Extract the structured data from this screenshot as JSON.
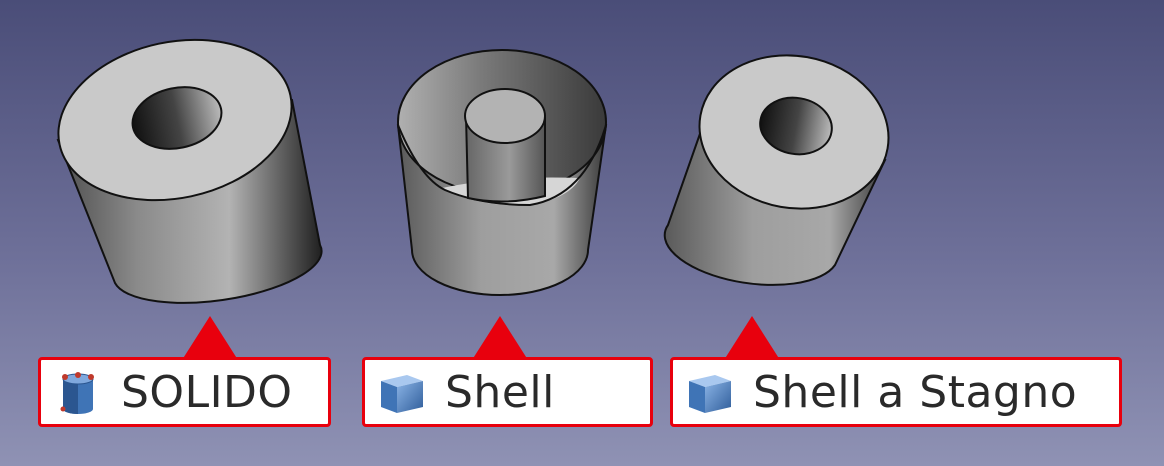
{
  "colors": {
    "annotation_red": "#e8000d",
    "label_bg": "#ffffff",
    "solid_gray": "#9a9a9a",
    "icon_blue": "#3f74b6"
  },
  "objects": [
    {
      "label": "SOLIDO",
      "icon": "solid-cylinder-icon"
    },
    {
      "label": "Shell",
      "icon": "shell-cube-icon"
    },
    {
      "label": "Shell a Stagno",
      "icon": "shell-cube-icon"
    }
  ]
}
